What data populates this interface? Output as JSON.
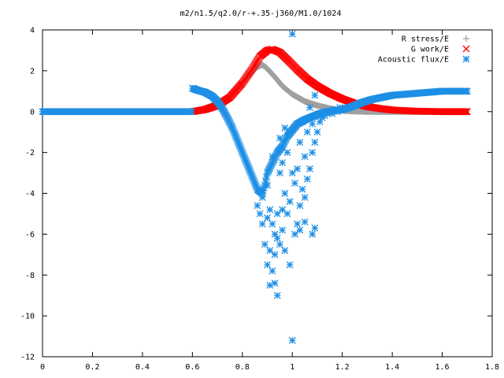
{
  "chart_data": {
    "type": "scatter",
    "title": "m2/n1.5/q2.0/r-+.35-j360/M1.0/1024",
    "xlabel": "",
    "ylabel": "",
    "xlim": [
      0,
      1.8
    ],
    "ylim": [
      -12,
      4
    ],
    "xticks": [
      "0",
      "0.2",
      "0.4",
      "0.6",
      "0.8",
      "1",
      "1.2",
      "1.4",
      "1.6",
      "1.8"
    ],
    "yticks": [
      "4",
      "2",
      "0",
      "-2",
      "-4",
      "-6",
      "-8",
      "-10",
      "-12"
    ],
    "grid": false,
    "legend_position": "top-right",
    "series": [
      {
        "name": "R stress/E",
        "marker": "plus",
        "color": "#a0a0a0",
        "x": [
          0.6,
          0.64,
          0.68,
          0.72,
          0.76,
          0.8,
          0.83,
          0.86,
          0.88,
          0.9,
          0.93,
          0.96,
          1.0,
          1.05,
          1.1,
          1.15,
          1.2,
          1.25,
          1.3,
          1.4,
          1.5,
          1.6,
          1.7
        ],
        "y": [
          0.0,
          0.1,
          0.3,
          0.55,
          0.9,
          1.4,
          1.85,
          2.2,
          2.3,
          2.1,
          1.7,
          1.25,
          0.85,
          0.5,
          0.3,
          0.15,
          0.05,
          0.02,
          0.0,
          0.0,
          0.0,
          0.0,
          0.0
        ]
      },
      {
        "name": "G work/E",
        "marker": "cross",
        "color": "#ff0000",
        "x": [
          0.6,
          0.65,
          0.7,
          0.75,
          0.8,
          0.84,
          0.87,
          0.9,
          0.92,
          0.95,
          0.98,
          1.02,
          1.06,
          1.1,
          1.15,
          1.2,
          1.25,
          1.3,
          1.35,
          1.4,
          1.5,
          1.6,
          1.7
        ],
        "y": [
          0.0,
          0.1,
          0.3,
          0.7,
          1.4,
          2.1,
          2.7,
          3.0,
          3.05,
          2.9,
          2.55,
          2.05,
          1.6,
          1.25,
          0.9,
          0.62,
          0.4,
          0.25,
          0.15,
          0.08,
          0.02,
          0.0,
          0.0
        ],
        "x_extra_zero": [
          0.0,
          0.6
        ]
      },
      {
        "name": "Acoustic flux/E",
        "marker": "star",
        "color": "#1e8fe6",
        "baseline": {
          "x": [
            0.0,
            0.6
          ],
          "y": 0.0
        },
        "x": [
          0.6,
          0.62,
          0.65,
          0.68,
          0.7,
          0.72,
          0.74,
          0.76,
          0.78,
          0.8,
          0.82,
          0.84,
          0.86,
          0.88,
          0.89,
          0.9,
          0.92,
          0.94,
          0.96,
          0.98,
          1.0,
          1.02,
          1.05,
          1.08,
          1.11,
          1.14,
          1.17,
          1.2,
          1.24,
          1.28,
          1.32,
          1.36,
          1.4,
          1.45,
          1.5,
          1.55,
          1.6,
          1.65,
          1.7
        ],
        "y": [
          1.15,
          1.05,
          0.95,
          0.75,
          0.5,
          0.15,
          -0.3,
          -0.8,
          -1.4,
          -2.0,
          -2.6,
          -3.2,
          -3.8,
          -4.0,
          -3.6,
          -3.0,
          -2.5,
          -2.0,
          -1.7,
          -1.2,
          -0.9,
          -0.6,
          -0.4,
          -0.25,
          -0.1,
          0.0,
          0.05,
          0.1,
          0.25,
          0.45,
          0.6,
          0.7,
          0.8,
          0.85,
          0.9,
          0.95,
          1.0,
          1.0,
          1.0
        ],
        "scatter_x": [
          0.86,
          0.87,
          0.88,
          0.88,
          0.89,
          0.9,
          0.9,
          0.91,
          0.91,
          0.92,
          0.92,
          0.93,
          0.93,
          0.94,
          0.94,
          0.95,
          0.95,
          0.96,
          0.96,
          0.97,
          0.97,
          0.98,
          0.98,
          0.99,
          0.99,
          1.0,
          1.0,
          1.01,
          1.01,
          1.02,
          1.02,
          1.03,
          1.03,
          1.04,
          1.04,
          1.05,
          1.05,
          1.06,
          1.06,
          1.07,
          1.07,
          1.08,
          1.08,
          1.09,
          1.09,
          1.1,
          1.1,
          1.11,
          1.12,
          1.13,
          1.14,
          1.15,
          1.16,
          1.17,
          1.18,
          1.19,
          1.2,
          0.91,
          0.93,
          0.94,
          0.96,
          0.99,
          1.0,
          1.03,
          1.05,
          1.08,
          1.09,
          0.9,
          0.92,
          0.95,
          0.97
        ],
        "scatter_y": [
          -4.6,
          -5.0,
          -5.5,
          -4.2,
          -6.5,
          -7.5,
          -5.2,
          -6.8,
          -4.8,
          -7.8,
          -5.5,
          -8.4,
          -6.0,
          -9.0,
          -5.0,
          -6.5,
          -3.0,
          -5.8,
          -2.5,
          -6.8,
          -4.0,
          -5.0,
          -2.0,
          -4.4,
          -1.0,
          -11.2,
          3.8,
          -6.0,
          -3.5,
          -5.5,
          -2.8,
          -4.6,
          -1.5,
          -3.8,
          -0.5,
          -4.2,
          -2.2,
          -3.3,
          -1.0,
          -2.8,
          0.2,
          -2.0,
          -0.6,
          -1.5,
          0.8,
          -1.0,
          -0.2,
          -0.5,
          -0.3,
          -0.2,
          -0.1,
          0.0,
          -0.1,
          0.1,
          0.0,
          0.2,
          0.1,
          -8.5,
          -7.0,
          -6.2,
          -4.8,
          -7.5,
          -3.0,
          -5.8,
          -5.4,
          -6.0,
          -5.7,
          -3.6,
          -2.2,
          -1.3,
          -0.8
        ]
      }
    ]
  }
}
